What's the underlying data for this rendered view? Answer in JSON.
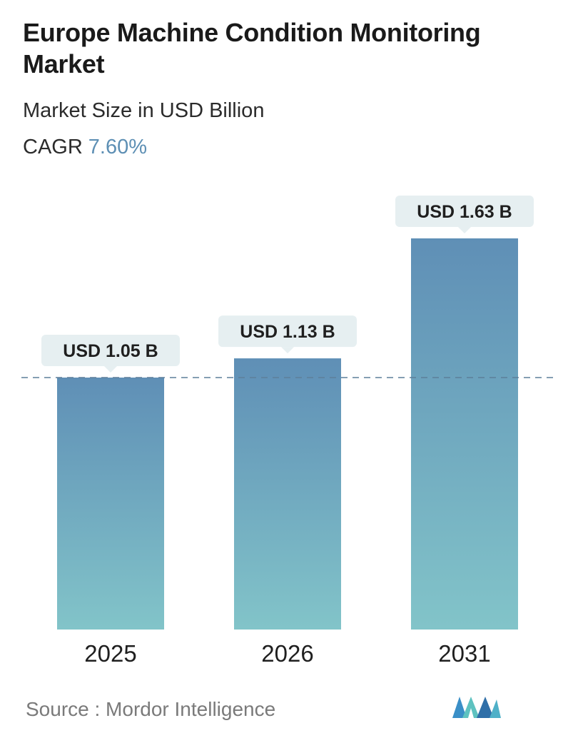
{
  "header": {
    "title": "Europe Machine Condition Monitoring Market",
    "subtitle": "Market Size in USD Billion",
    "cagr_label": "CAGR",
    "cagr_value": "7.60%"
  },
  "chart_data": {
    "type": "bar",
    "categories": [
      "2025",
      "2026",
      "2031"
    ],
    "values": [
      1.05,
      1.13,
      1.63
    ],
    "value_labels": [
      "USD 1.05 B",
      "USD 1.13 B",
      "USD 1.63 B"
    ],
    "ylim": [
      0,
      1.63
    ],
    "reference_line": 1.05,
    "grid": false,
    "colors": {
      "bar_top": "#5f8fb6",
      "bar_bottom": "#82c4c9",
      "label_bg": "#e6eff1",
      "reference_line": "#5d7f9a"
    }
  },
  "footer": {
    "source_text": "Source :  Mordor Intelligence",
    "logo_name": "mordor-intelligence-logo"
  }
}
